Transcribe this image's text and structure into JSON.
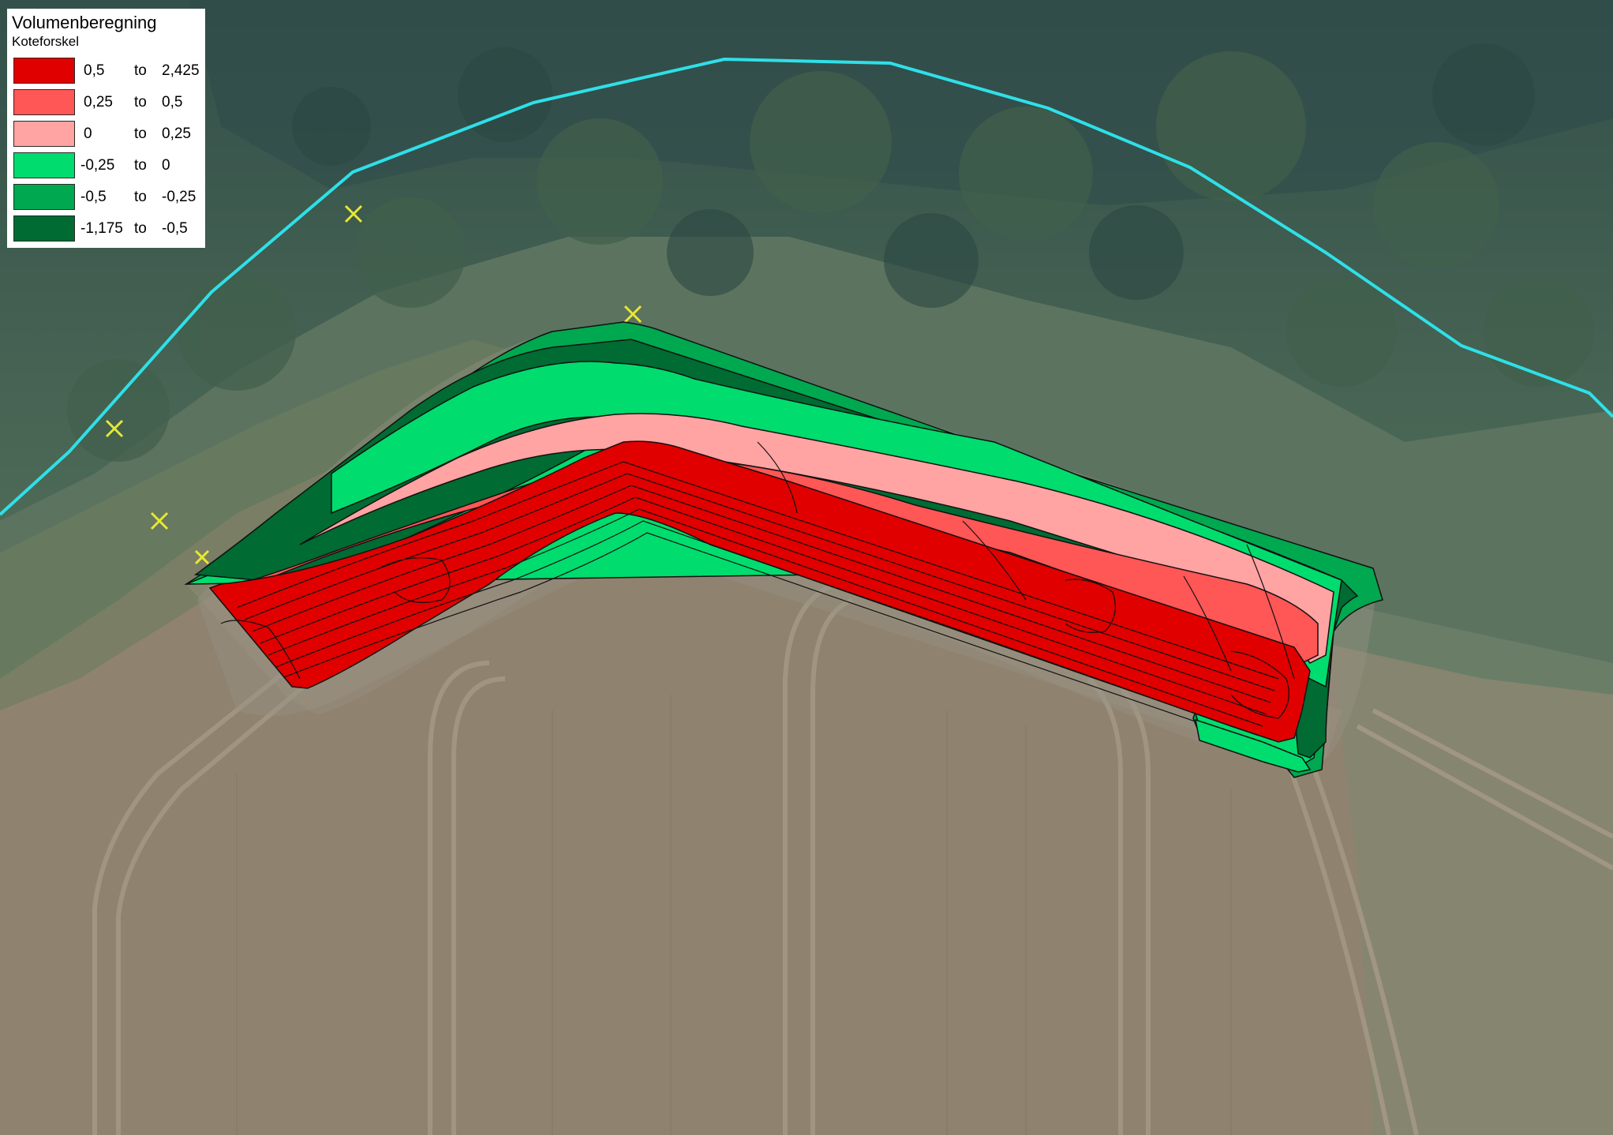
{
  "legend": {
    "title": "Volumenberegning",
    "subtitle": "Koteforskel",
    "classes": [
      {
        "from": "0,5",
        "to": "to",
        "upper": "2,425",
        "color": "#e00000"
      },
      {
        "from": "0,25",
        "to": "to",
        "upper": "0,5",
        "color": "#ff5656"
      },
      {
        "from": "0",
        "to": "to",
        "upper": "0,25",
        "color": "#ffa3a3"
      },
      {
        "from": "-0,25",
        "to": "to",
        "upper": "0",
        "color": "#00dc6e"
      },
      {
        "from": "-0,5",
        "to": "to",
        "upper": "-0,25",
        "color": "#00a84f"
      },
      {
        "from": "-1,175",
        "to": "to",
        "upper": "-0,5",
        "color": "#006b32"
      }
    ]
  },
  "map": {
    "basemap": "aerial-orthophoto",
    "boundary_line_color": "#2ee0e8",
    "survey_point_marker": "x-marker",
    "survey_point_color": "#e8e832"
  }
}
